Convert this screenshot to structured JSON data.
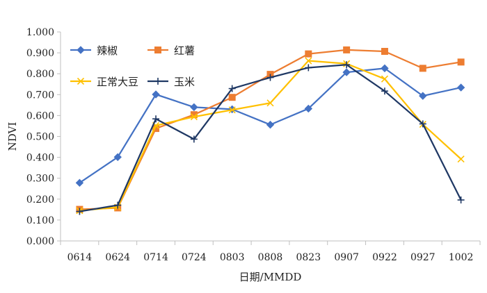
{
  "chart_data": {
    "type": "line",
    "title": "",
    "xlabel": "日期/MMDD",
    "ylabel": "NDVI",
    "ylim": [
      0,
      1
    ],
    "y_tick_format": "0.000",
    "y_tick_step": 0.1,
    "grid": false,
    "legend_position": "top-left",
    "categories": [
      "0614",
      "0624",
      "0714",
      "0724",
      "0803",
      "0808",
      "0823",
      "0907",
      "0922",
      "0927",
      "1002"
    ],
    "series": [
      {
        "name": "辣椒",
        "color": "#4472C4",
        "marker": "diamond",
        "values": [
          0.278,
          0.401,
          0.701,
          0.64,
          0.63,
          0.556,
          0.633,
          0.807,
          0.826,
          0.694,
          0.734
        ]
      },
      {
        "name": "红薯",
        "color": "#ED7D31",
        "marker": "square",
        "values": [
          0.151,
          0.158,
          0.538,
          0.604,
          0.687,
          0.797,
          0.895,
          0.914,
          0.907,
          0.826,
          0.856
        ]
      },
      {
        "name": "正常大豆",
        "color": "#FFC000",
        "marker": "x",
        "values": [
          0.145,
          0.161,
          0.552,
          0.594,
          0.627,
          0.66,
          0.862,
          0.848,
          0.775,
          0.558,
          0.392
        ]
      },
      {
        "name": "玉米",
        "color": "#1F3864",
        "marker": "plus",
        "values": [
          0.141,
          0.171,
          0.584,
          0.487,
          0.729,
          0.782,
          0.829,
          0.843,
          0.717,
          0.56,
          0.196
        ]
      }
    ]
  }
}
